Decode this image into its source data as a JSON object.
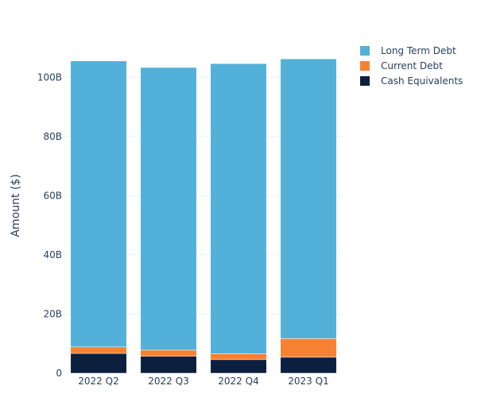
{
  "chart_data": {
    "type": "bar",
    "stacked": true,
    "title": "",
    "xlabel": "",
    "ylabel": "Amount ($)",
    "categories": [
      "2022 Q2",
      "2022 Q3",
      "2022 Q4",
      "2023 Q1"
    ],
    "series": [
      {
        "name": "Cash Equivalents",
        "color": "#0d1f3f",
        "values": [
          6.7,
          5.7,
          4.6,
          5.4
        ]
      },
      {
        "name": "Current Debt",
        "color": "#f58233",
        "values": [
          2.2,
          2.1,
          2.0,
          6.3
        ]
      },
      {
        "name": "Long Term Debt",
        "color": "#52b0d9",
        "values": [
          96.6,
          95.5,
          98.0,
          94.5
        ]
      }
    ],
    "y_unit": "B",
    "ylim": [
      0,
      110
    ],
    "yticks": [
      0,
      20,
      40,
      60,
      80,
      100
    ],
    "ytick_labels": [
      "0",
      "20B",
      "40B",
      "60B",
      "80B",
      "100B"
    ],
    "grid": true,
    "legend_position": "top-right",
    "legend_order": [
      "Long Term Debt",
      "Current Debt",
      "Cash Equivalents"
    ]
  }
}
